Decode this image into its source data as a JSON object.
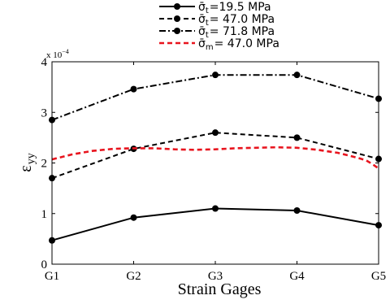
{
  "chart_data": {
    "type": "line",
    "categories": [
      "G1",
      "G2",
      "G3",
      "G4",
      "G5"
    ],
    "xlabel": "Strain Gages",
    "ylabel_main": "ε",
    "ylabel_sub": "yy",
    "ylim": [
      0,
      4
    ],
    "yticks": [
      "0",
      "1",
      "2",
      "3",
      "4"
    ],
    "y_scale_note": "x 10",
    "y_scale_exp": "−4",
    "grid": false,
    "legend_position": "top",
    "series": [
      {
        "name": "σ̄ₜ =19.5 MPa",
        "legend_symbol": "σ̄",
        "legend_sub": "t",
        "legend_text": "=19.5 MPa",
        "style": "solid",
        "color": "#000000",
        "markers": true,
        "values": [
          0.47,
          0.92,
          1.1,
          1.06,
          0.77
        ]
      },
      {
        "name": "σ̄ₜ = 47.0 MPa",
        "legend_symbol": "σ̄",
        "legend_sub": "t",
        "legend_text": "= 47.0 MPa",
        "style": "dashed",
        "color": "#000000",
        "markers": true,
        "values": [
          1.7,
          2.28,
          2.6,
          2.5,
          2.08
        ]
      },
      {
        "name": "σ̄ₜ = 71.8 MPa",
        "legend_symbol": "σ̄",
        "legend_sub": "t",
        "legend_text": "= 71.8 MPa",
        "style": "dashdot",
        "color": "#000000",
        "markers": true,
        "values": [
          2.85,
          3.46,
          3.74,
          3.74,
          3.27
        ]
      },
      {
        "name": "σ̄ₘ = 47.0 MPa",
        "legend_symbol": "σ̄",
        "legend_sub": "m",
        "legend_text": "= 47.0 MPa",
        "style": "dashed",
        "color": "#e8141e",
        "markers": false,
        "x": [
          0,
          0.25,
          0.5,
          0.75,
          1,
          1.25,
          1.5,
          1.75,
          2,
          2.25,
          2.5,
          2.75,
          3,
          3.25,
          3.5,
          3.75,
          3.85,
          3.92,
          4
        ],
        "values": [
          2.07,
          2.17,
          2.24,
          2.28,
          2.29,
          2.29,
          2.27,
          2.26,
          2.27,
          2.29,
          2.3,
          2.31,
          2.3,
          2.26,
          2.2,
          2.1,
          2.05,
          1.98,
          1.89
        ]
      }
    ]
  }
}
